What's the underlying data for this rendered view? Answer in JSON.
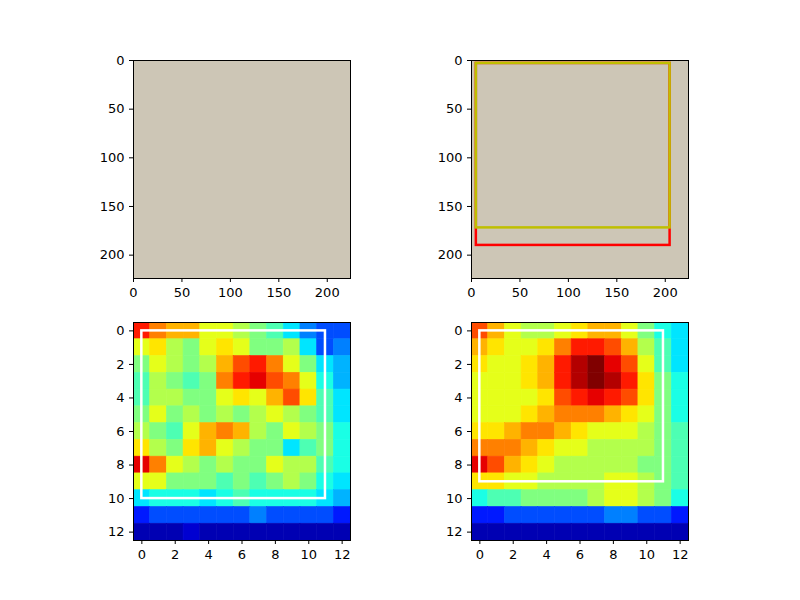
{
  "chart_data": [
    {
      "type": "image",
      "xlim": [
        0,
        224
      ],
      "ylim": [
        224,
        0
      ],
      "xticks": [
        0,
        50,
        100,
        150,
        200
      ],
      "yticks": [
        0,
        50,
        100,
        150,
        200
      ]
    },
    {
      "type": "image",
      "xlim": [
        0,
        224
      ],
      "ylim": [
        224,
        0
      ],
      "xticks": [
        0,
        50,
        100,
        150,
        200
      ],
      "yticks": [
        0,
        50,
        100,
        150,
        200
      ],
      "boxes": [
        {
          "x1": 5,
          "y1": 3,
          "x2": 205,
          "y2": 190,
          "color": "#ff0000"
        },
        {
          "x1": 5,
          "y1": 3,
          "x2": 205,
          "y2": 172,
          "color": "#bfbf00"
        }
      ]
    },
    {
      "type": "heatmap",
      "xlim": [
        -0.5,
        12.5
      ],
      "ylim": [
        12.5,
        -0.5
      ],
      "xticks": [
        0,
        2,
        4,
        6,
        8,
        10,
        12
      ],
      "yticks": [
        0,
        2,
        4,
        6,
        8,
        10,
        12
      ],
      "zlim": [
        0,
        1
      ],
      "cells": [
        [
          0.85,
          0.75,
          0.7,
          0.7,
          0.6,
          0.6,
          0.55,
          0.5,
          0.45,
          0.35,
          0.25,
          0.2,
          0.2
        ],
        [
          0.6,
          0.65,
          0.55,
          0.5,
          0.6,
          0.65,
          0.6,
          0.5,
          0.5,
          0.55,
          0.35,
          0.2,
          0.25
        ],
        [
          0.5,
          0.6,
          0.55,
          0.5,
          0.55,
          0.7,
          0.8,
          0.85,
          0.75,
          0.6,
          0.5,
          0.35,
          0.3
        ],
        [
          0.45,
          0.55,
          0.5,
          0.45,
          0.5,
          0.75,
          0.85,
          0.9,
          0.8,
          0.75,
          0.6,
          0.4,
          0.3
        ],
        [
          0.45,
          0.55,
          0.55,
          0.5,
          0.5,
          0.6,
          0.65,
          0.6,
          0.7,
          0.8,
          0.65,
          0.45,
          0.35
        ],
        [
          0.5,
          0.6,
          0.5,
          0.55,
          0.5,
          0.55,
          0.5,
          0.55,
          0.6,
          0.55,
          0.5,
          0.45,
          0.35
        ],
        [
          0.55,
          0.5,
          0.45,
          0.6,
          0.7,
          0.75,
          0.7,
          0.55,
          0.5,
          0.6,
          0.55,
          0.5,
          0.4
        ],
        [
          0.65,
          0.55,
          0.5,
          0.65,
          0.7,
          0.6,
          0.55,
          0.5,
          0.5,
          0.35,
          0.45,
          0.5,
          0.4
        ],
        [
          0.9,
          0.75,
          0.6,
          0.55,
          0.5,
          0.55,
          0.5,
          0.5,
          0.6,
          0.55,
          0.55,
          0.45,
          0.4
        ],
        [
          0.6,
          0.6,
          0.5,
          0.5,
          0.5,
          0.45,
          0.5,
          0.45,
          0.5,
          0.55,
          0.5,
          0.4,
          0.35
        ],
        [
          0.35,
          0.4,
          0.4,
          0.4,
          0.35,
          0.4,
          0.45,
          0.4,
          0.4,
          0.4,
          0.4,
          0.35,
          0.3
        ],
        [
          0.15,
          0.2,
          0.2,
          0.2,
          0.2,
          0.2,
          0.2,
          0.25,
          0.2,
          0.2,
          0.2,
          0.2,
          0.15
        ],
        [
          0.05,
          0.05,
          0.05,
          0.08,
          0.05,
          0.05,
          0.05,
          0.05,
          0.05,
          0.05,
          0.05,
          0.05,
          0.05
        ]
      ],
      "boxes": [
        {
          "x1": 0,
          "y1": 0,
          "x2": 11,
          "y2": 10,
          "color": "#ffffff"
        }
      ]
    },
    {
      "type": "heatmap",
      "xlim": [
        -0.5,
        12.5
      ],
      "ylim": [
        12.5,
        -0.5
      ],
      "xticks": [
        0,
        2,
        4,
        6,
        8,
        10,
        12
      ],
      "yticks": [
        0,
        2,
        4,
        6,
        8,
        10,
        12
      ],
      "zlim": [
        0,
        1
      ],
      "cells": [
        [
          0.8,
          0.7,
          0.6,
          0.55,
          0.55,
          0.6,
          0.65,
          0.7,
          0.7,
          0.6,
          0.5,
          0.4,
          0.35
        ],
        [
          0.7,
          0.65,
          0.6,
          0.6,
          0.65,
          0.75,
          0.85,
          0.85,
          0.8,
          0.7,
          0.55,
          0.45,
          0.35
        ],
        [
          0.65,
          0.6,
          0.6,
          0.65,
          0.7,
          0.85,
          0.95,
          1.0,
          0.9,
          0.8,
          0.6,
          0.45,
          0.35
        ],
        [
          0.6,
          0.6,
          0.6,
          0.65,
          0.7,
          0.85,
          0.95,
          1.0,
          0.95,
          0.85,
          0.65,
          0.5,
          0.4
        ],
        [
          0.6,
          0.6,
          0.6,
          0.6,
          0.65,
          0.8,
          0.85,
          0.9,
          0.85,
          0.8,
          0.65,
          0.5,
          0.4
        ],
        [
          0.6,
          0.6,
          0.6,
          0.65,
          0.7,
          0.75,
          0.75,
          0.75,
          0.7,
          0.65,
          0.6,
          0.5,
          0.4
        ],
        [
          0.65,
          0.65,
          0.7,
          0.75,
          0.75,
          0.7,
          0.65,
          0.6,
          0.6,
          0.6,
          0.55,
          0.5,
          0.45
        ],
        [
          0.75,
          0.75,
          0.75,
          0.7,
          0.65,
          0.6,
          0.6,
          0.55,
          0.55,
          0.55,
          0.55,
          0.5,
          0.45
        ],
        [
          0.9,
          0.8,
          0.7,
          0.65,
          0.6,
          0.55,
          0.55,
          0.55,
          0.55,
          0.55,
          0.5,
          0.5,
          0.45
        ],
        [
          0.65,
          0.65,
          0.6,
          0.6,
          0.55,
          0.55,
          0.55,
          0.55,
          0.6,
          0.6,
          0.55,
          0.5,
          0.45
        ],
        [
          0.4,
          0.45,
          0.45,
          0.5,
          0.5,
          0.5,
          0.5,
          0.55,
          0.6,
          0.6,
          0.55,
          0.5,
          0.4
        ],
        [
          0.15,
          0.15,
          0.2,
          0.2,
          0.2,
          0.2,
          0.2,
          0.2,
          0.25,
          0.25,
          0.2,
          0.2,
          0.15
        ],
        [
          0.05,
          0.05,
          0.05,
          0.05,
          0.05,
          0.05,
          0.05,
          0.05,
          0.05,
          0.05,
          0.05,
          0.05,
          0.05
        ]
      ],
      "boxes": [
        {
          "x1": 0,
          "y1": 0,
          "x2": 11,
          "y2": 9,
          "color": "#ffffff"
        }
      ]
    }
  ]
}
